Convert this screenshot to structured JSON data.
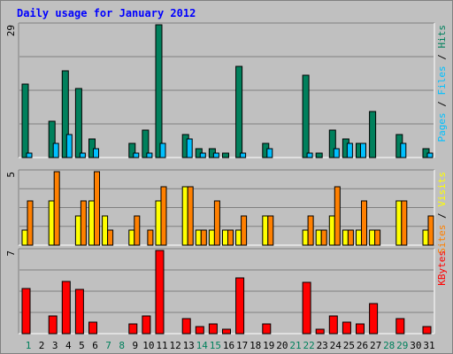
{
  "chart_data": {
    "type": "bar",
    "title": "Daily usage for January 2012",
    "categories": [
      "1",
      "2",
      "3",
      "4",
      "5",
      "6",
      "7",
      "8",
      "9",
      "10",
      "11",
      "12",
      "13",
      "14",
      "15",
      "16",
      "17",
      "18",
      "19",
      "20",
      "21",
      "22",
      "23",
      "24",
      "25",
      "26",
      "27",
      "28",
      "29",
      "30",
      "31"
    ],
    "weekend_days": [
      "1",
      "7",
      "8",
      "14",
      "15",
      "21",
      "22",
      "28",
      "29"
    ],
    "panels": [
      {
        "id": "top",
        "ymax": 29,
        "ymax_label": "29",
        "series": [
          {
            "name": "Hits",
            "color": "#00805c",
            "values": [
              16,
              0,
              8,
              19,
              15,
              4,
              0,
              0,
              3,
              6,
              29,
              0,
              5,
              2,
              2,
              1,
              20,
              0,
              3,
              0,
              0,
              18,
              1,
              6,
              4,
              3,
              10,
              0,
              5,
              0,
              2
            ]
          },
          {
            "name": "Files",
            "color": "#00c0ff",
            "values": [
              1,
              0,
              3,
              5,
              1,
              2,
              0,
              0,
              1,
              1,
              3,
              0,
              4,
              1,
              1,
              0,
              1,
              0,
              2,
              0,
              0,
              1,
              0,
              2,
              3,
              3,
              0,
              0,
              3,
              0,
              1
            ]
          }
        ],
        "label_segments": [
          {
            "text": "Pages",
            "color": "#00c0ff"
          },
          {
            "text": " / ",
            "color": "#000000"
          },
          {
            "text": "Files",
            "color": "#00c0ff"
          },
          {
            "text": " / ",
            "color": "#000000"
          },
          {
            "text": "Hits",
            "color": "#00805c"
          }
        ]
      },
      {
        "id": "middle",
        "ymax": 5,
        "ymax_label": "5",
        "series": [
          {
            "name": "Visits",
            "color": "#ffff00",
            "values": [
              1,
              0,
              3,
              0,
              2,
              3,
              2,
              0,
              1,
              0,
              3,
              0,
              4,
              1,
              1,
              1,
              1,
              0,
              2,
              0,
              0,
              1,
              1,
              2,
              1,
              1,
              1,
              0,
              3,
              0,
              1
            ]
          },
          {
            "name": "Sites",
            "color": "#ff8000",
            "values": [
              3,
              0,
              5,
              0,
              3,
              5,
              1,
              0,
              2,
              1,
              4,
              0,
              4,
              1,
              3,
              1,
              2,
              0,
              2,
              0,
              0,
              2,
              1,
              4,
              1,
              3,
              1,
              0,
              3,
              0,
              2
            ]
          }
        ],
        "label_segments": [
          {
            "text": "Sites",
            "color": "#ff8000"
          },
          {
            "text": " / ",
            "color": "#000000"
          },
          {
            "text": "Visits",
            "color": "#ffff00"
          }
        ]
      },
      {
        "id": "bottom",
        "ymax": 7,
        "ymax_label": "7",
        "series": [
          {
            "name": "KBytes",
            "color": "#ff0000",
            "values": [
              3.8,
              0,
              1.5,
              4.4,
              3.7,
              1.0,
              0,
              0,
              0.8,
              1.5,
              7.0,
              0,
              1.3,
              0.6,
              0.8,
              0.4,
              4.7,
              0,
              0.8,
              0,
              0,
              4.3,
              0.4,
              1.5,
              1.0,
              0.8,
              2.5,
              0,
              1.3,
              0,
              0.6
            ]
          }
        ],
        "label_segments": [
          {
            "text": "KBytes",
            "color": "#ff0000"
          }
        ]
      }
    ],
    "grid": true,
    "colors": {
      "background": "#c0c0c0",
      "plot": "#c0c0c0",
      "title": "#0000ff",
      "weekday_label": "#000000",
      "weekend_label": "#00805c",
      "gridline": "#808080"
    }
  }
}
